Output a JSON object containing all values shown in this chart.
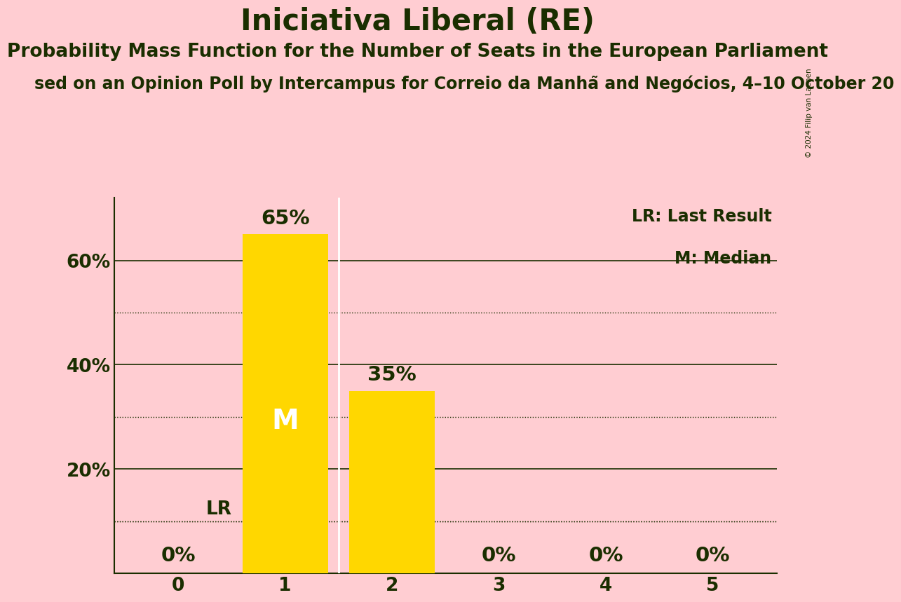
{
  "title": "Iniciativa Liberal (RE)",
  "subtitle": "Probability Mass Function for the Number of Seats in the European Parliament",
  "source_line": "sed on an Opinion Poll by Intercampus for Correio da Manhã and Negócios, 4–10 October 20",
  "copyright": "© 2024 Filip van Laenen",
  "categories": [
    0,
    1,
    2,
    3,
    4,
    5
  ],
  "values": [
    0,
    65,
    35,
    0,
    0,
    0
  ],
  "bar_color": "#FFD700",
  "background_color": "#FFCDD2",
  "text_color": "#1a2e00",
  "ylabel_ticks": [
    20,
    40,
    60
  ],
  "ylim": [
    0,
    72
  ],
  "solid_gridlines": [
    20,
    40,
    60
  ],
  "dotted_gridlines": [
    10,
    30,
    50
  ],
  "lr_value": 10,
  "median_bar": 1,
  "legend_lr": "LR: Last Result",
  "legend_m": "M: Median",
  "title_fontsize": 30,
  "subtitle_fontsize": 19,
  "source_fontsize": 17,
  "tick_fontsize": 19,
  "bar_label_fontsize": 21,
  "median_label_fontsize": 28
}
